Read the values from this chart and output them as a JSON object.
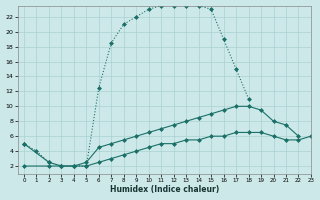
{
  "xlabel": "Humidex (Indice chaleur)",
  "bg_color": "#cce8e8",
  "grid_color": "#aad0d0",
  "line_color": "#1a7068",
  "xlim": [
    -0.5,
    23
  ],
  "ylim": [
    1,
    23.5
  ],
  "yticks": [
    2,
    4,
    6,
    8,
    10,
    12,
    14,
    16,
    18,
    20,
    22
  ],
  "xticks": [
    0,
    1,
    2,
    3,
    4,
    5,
    6,
    7,
    8,
    9,
    10,
    11,
    12,
    13,
    14,
    15,
    16,
    17,
    18,
    19,
    20,
    21,
    22,
    23
  ],
  "line1_x": [
    0,
    1,
    2,
    3,
    4,
    5,
    6,
    7,
    8,
    9,
    10,
    11,
    12,
    13,
    14,
    15,
    16,
    17,
    18
  ],
  "line1_y": [
    5,
    4,
    2.5,
    2,
    2,
    2,
    12.5,
    18.5,
    21,
    22,
    23,
    23.5,
    23.5,
    23.5,
    23.5,
    23,
    19,
    15,
    11
  ],
  "line2_x": [
    0,
    2,
    3,
    4,
    5,
    6,
    7,
    8,
    9,
    10,
    11,
    12,
    13,
    14,
    15,
    16,
    17,
    18,
    19,
    20,
    21,
    22
  ],
  "line2_y": [
    5,
    2.5,
    2,
    2,
    2.5,
    4.5,
    5,
    5.5,
    6,
    6.5,
    7,
    7.5,
    8,
    8.5,
    9,
    9.5,
    10,
    10,
    9.5,
    8,
    7.5,
    6
  ],
  "line3_x": [
    0,
    2,
    3,
    4,
    5,
    6,
    7,
    8,
    9,
    10,
    11,
    12,
    13,
    14,
    15,
    16,
    17,
    18,
    19,
    20,
    21,
    22,
    23
  ],
  "line3_y": [
    2,
    2,
    2,
    2,
    2,
    2.5,
    3,
    3.5,
    4,
    4.5,
    5,
    5,
    5.5,
    5.5,
    6,
    6,
    6.5,
    6.5,
    6.5,
    6,
    5.5,
    5.5,
    6
  ]
}
